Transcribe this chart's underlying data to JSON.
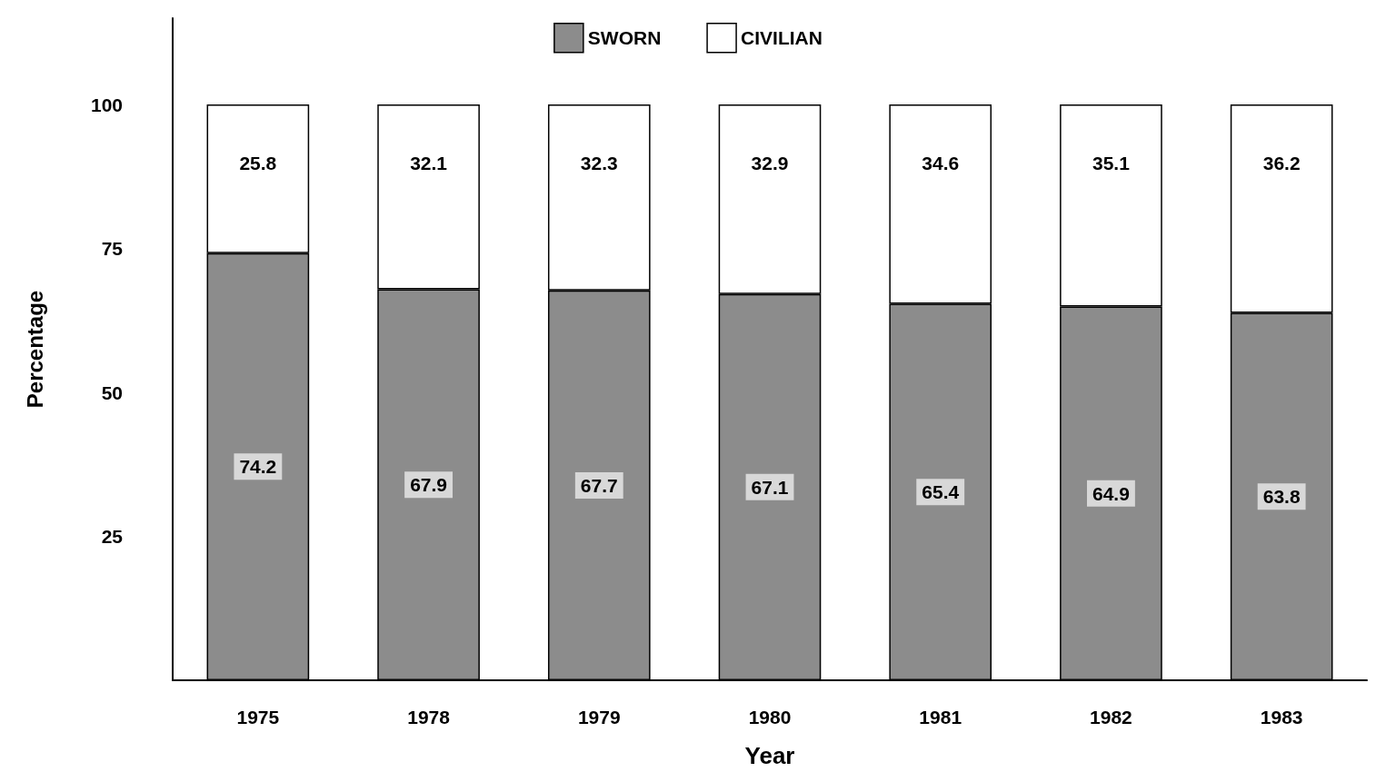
{
  "chart_data": {
    "type": "bar",
    "stacked": true,
    "xlabel": "Year",
    "ylabel": "Percentage",
    "categories": [
      "1975",
      "1978",
      "1979",
      "1980",
      "1981",
      "1982",
      "1983"
    ],
    "series": [
      {
        "name": "SWORN",
        "color": "#8c8c8c",
        "values": [
          74.2,
          67.9,
          67.7,
          67.1,
          65.4,
          64.9,
          63.8
        ]
      },
      {
        "name": "CIVILIAN",
        "color": "#ffffff",
        "values": [
          25.8,
          32.1,
          32.3,
          32.9,
          34.6,
          35.1,
          36.2
        ]
      }
    ],
    "ylim": [
      0,
      115
    ],
    "yticks": [
      25,
      50,
      75,
      100
    ],
    "data_labels": true,
    "legend": "top",
    "grid": false
  }
}
